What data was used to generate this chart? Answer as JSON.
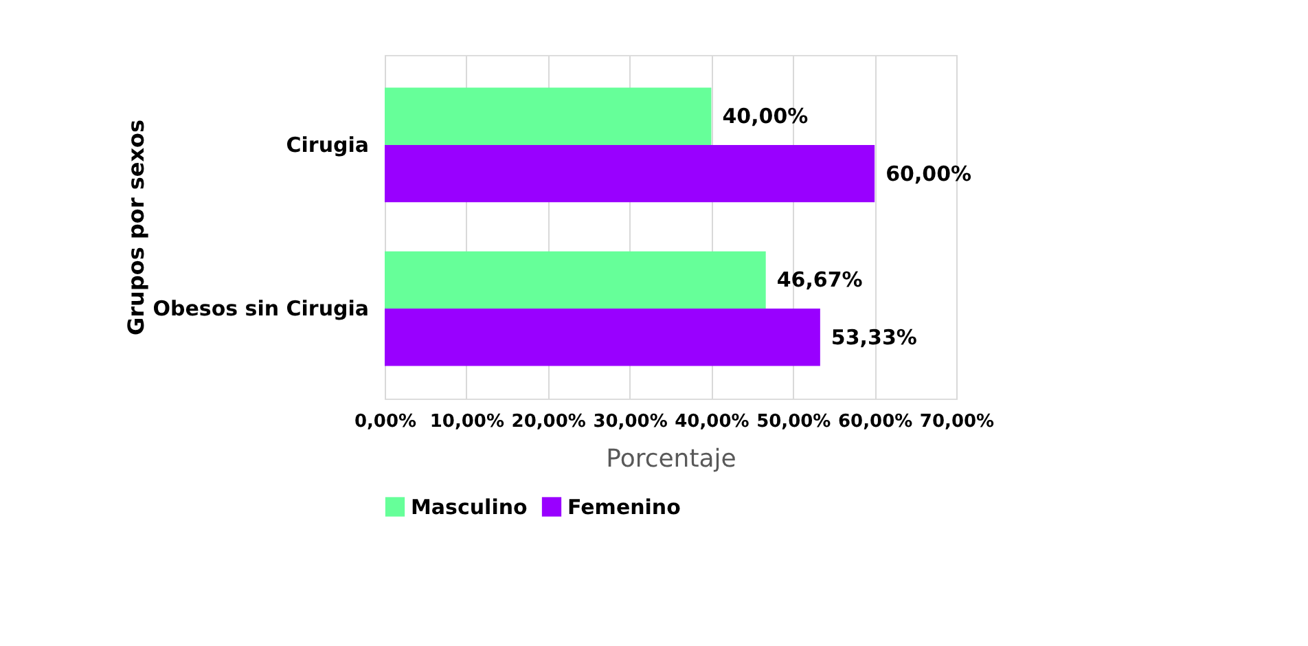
{
  "chart_data": {
    "type": "bar",
    "orientation": "horizontal",
    "ylabel": "Grupos por sexos",
    "xlabel": "Porcentaje",
    "categories": [
      "Cirugia",
      "Obesos sin Cirugia"
    ],
    "series": [
      {
        "name": "Masculino",
        "color": "#66ff99",
        "values": [
          40,
          46.67
        ],
        "value_labels": [
          "40,00%",
          "46,67%"
        ]
      },
      {
        "name": "Femenino",
        "color": "#9900ff",
        "values": [
          60,
          53.33
        ],
        "value_labels": [
          "60,00%",
          "53,33%"
        ]
      }
    ],
    "xlim": [
      0,
      70
    ],
    "xticks": [
      {
        "value": 0,
        "label": "0,00%"
      },
      {
        "value": 10,
        "label": "10,00%"
      },
      {
        "value": 20,
        "label": "20,00%"
      },
      {
        "value": 30,
        "label": "30,00%"
      },
      {
        "value": 40,
        "label": "40,00%"
      },
      {
        "value": 50,
        "label": "50,00%"
      },
      {
        "value": 60,
        "label": "60,00%"
      },
      {
        "value": 70,
        "label": "70,00%"
      }
    ],
    "grid": "x",
    "legend": "bottom"
  }
}
